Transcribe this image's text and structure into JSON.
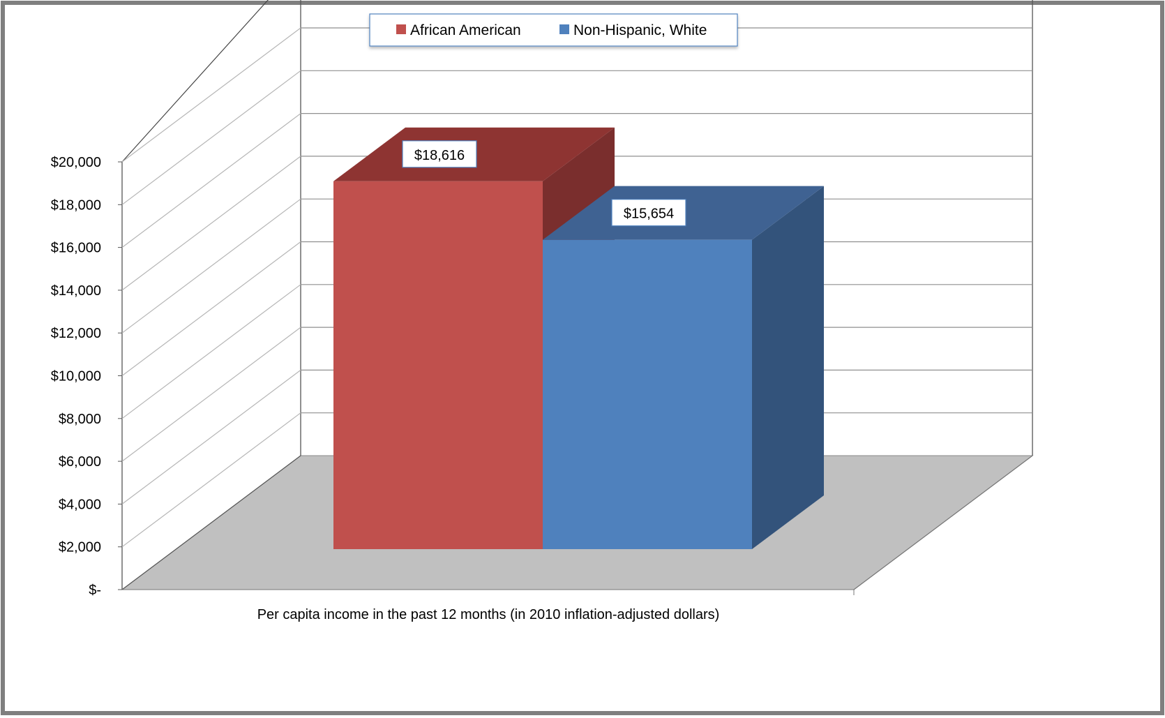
{
  "chart_data": {
    "type": "bar",
    "categories": [
      "Per capita income in the past 12 months (in 2010 inflation-adjusted dollars)"
    ],
    "series": [
      {
        "name": "African American",
        "values": [
          18616
        ],
        "label": "$18,616",
        "color": "#C0504D",
        "top_color": "#8E3432",
        "side_color": "#7A2E2D"
      },
      {
        "name": "Non-Hispanic, White",
        "values": [
          15654
        ],
        "label": "$15,654",
        "color": "#4F81BD",
        "top_color": "#3F6292",
        "side_color": "#33537B"
      }
    ],
    "y_ticks": [
      {
        "value": 0,
        "label": "$-"
      },
      {
        "value": 2000,
        "label": "$2,000"
      },
      {
        "value": 4000,
        "label": "$4,000"
      },
      {
        "value": 6000,
        "label": "$6,000"
      },
      {
        "value": 8000,
        "label": "$8,000"
      },
      {
        "value": 10000,
        "label": "$10,000"
      },
      {
        "value": 12000,
        "label": "$12,000"
      },
      {
        "value": 14000,
        "label": "$14,000"
      },
      {
        "value": 16000,
        "label": "$16,000"
      },
      {
        "value": 18000,
        "label": "$18,000"
      },
      {
        "value": 20000,
        "label": "$20,000"
      }
    ],
    "ylim": [
      0,
      20000
    ],
    "xlabel": "Per capita income in the past 12 months (in 2010 inflation-adjusted dollars)",
    "ylabel": "",
    "title": "",
    "legend": "top-center",
    "grid": true,
    "floor_color": "#C0C0C0",
    "frame_color": "#7F7F7F"
  }
}
